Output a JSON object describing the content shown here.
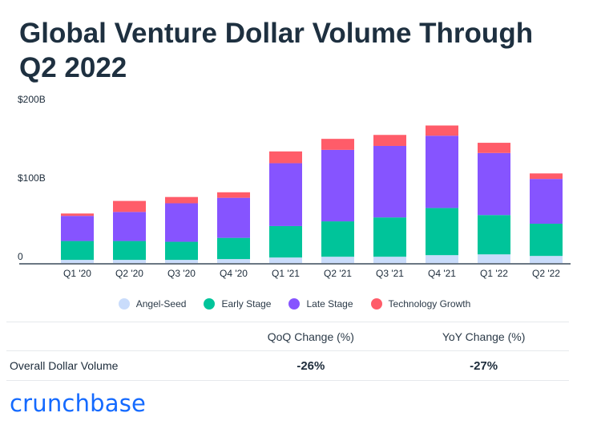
{
  "title": "Global Venture Dollar Volume Through Q2 2022",
  "chart_data": {
    "type": "bar",
    "stacked": true,
    "categories": [
      "Q1 '20",
      "Q2 '20",
      "Q3 '20",
      "Q4 '20",
      "Q1 '21",
      "Q2 '21",
      "Q3 '21",
      "Q4 '21",
      "Q1 '22",
      "Q2 '22"
    ],
    "series": [
      {
        "name": "Angel-Seed",
        "color": "#c9dcfb",
        "values": [
          4,
          4,
          4,
          5,
          7,
          8,
          8,
          10,
          11,
          9
        ]
      },
      {
        "name": "Early Stage",
        "color": "#00c49a",
        "values": [
          24,
          24,
          23,
          27,
          40,
          45,
          50,
          60,
          50,
          41
        ]
      },
      {
        "name": "Late Stage",
        "color": "#8654ff",
        "values": [
          32,
          37,
          49,
          51,
          80,
          91,
          91,
          92,
          79,
          57
        ]
      },
      {
        "name": "Technology Growth",
        "color": "#ff5c69",
        "values": [
          3,
          14,
          8,
          7,
          15,
          14,
          14,
          13,
          13,
          7
        ]
      }
    ],
    "y_ticks": [
      {
        "value": 0,
        "label": "0"
      },
      {
        "value": 100,
        "label": "$100B"
      },
      {
        "value": 200,
        "label": "$200B"
      }
    ],
    "ylim": [
      0,
      200
    ],
    "grid": false,
    "legend_position": "bottom"
  },
  "table": {
    "headers": [
      "",
      "QoQ Change (%)",
      "YoY Change (%)"
    ],
    "rows": [
      {
        "label": "Overall Dollar Volume",
        "qoq": "-26%",
        "yoy": "-27%"
      }
    ]
  },
  "brand": "crunchbase"
}
